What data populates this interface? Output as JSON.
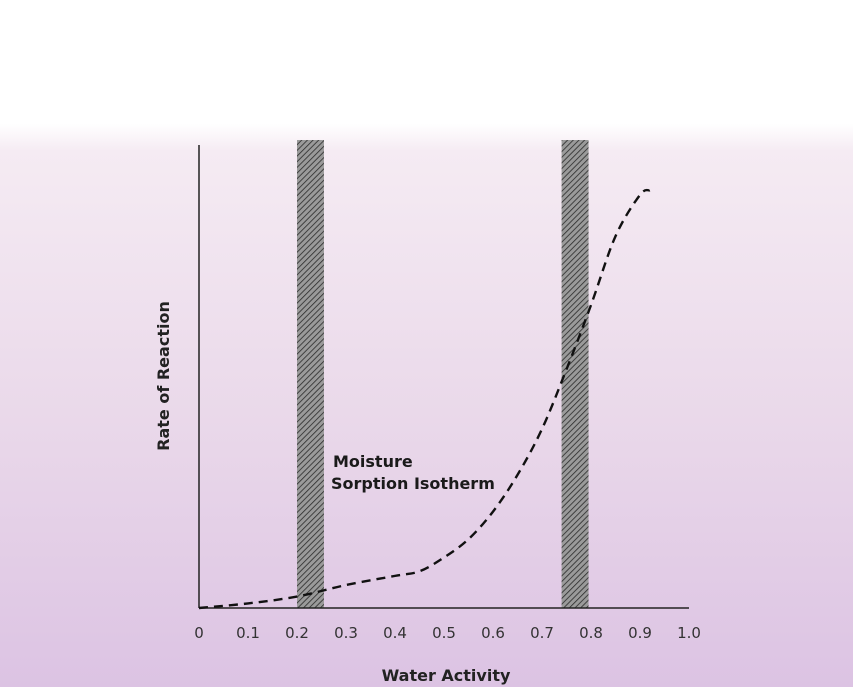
{
  "chart_data": {
    "type": "line",
    "xlabel": "Water Activity",
    "ylabel": "Rate of Reaction",
    "xlim": [
      0,
      1.0
    ],
    "x_ticks": [
      "0",
      "0.1",
      "0.2",
      "0.3",
      "0.4",
      "0.5",
      "0.6",
      "0.7",
      "0.8",
      "0.9",
      "1.0"
    ],
    "y_ticks_shown": false,
    "grid": false,
    "series": [
      {
        "style": "dashed",
        "x": [
          0,
          0.1,
          0.2,
          0.3,
          0.4,
          0.45,
          0.5,
          0.55,
          0.6,
          0.65,
          0.7,
          0.75,
          0.8,
          0.85,
          0.9,
          0.92
        ],
        "y": [
          0.0,
          0.01,
          0.025,
          0.05,
          0.07,
          0.08,
          0.11,
          0.15,
          0.21,
          0.29,
          0.39,
          0.52,
          0.66,
          0.81,
          0.9,
          0.91
        ]
      }
    ],
    "ylim": [
      0,
      1.0
    ],
    "bands": [
      {
        "x_range": [
          0.2,
          0.255
        ],
        "pattern": "hatched"
      },
      {
        "x_range": [
          0.74,
          0.795
        ],
        "pattern": "hatched"
      }
    ],
    "annotations": [
      {
        "lines": [
          "Moisture",
          "Sorption Isotherm"
        ]
      }
    ]
  },
  "colors": {
    "background_top": "#ffffff",
    "background_mid": "#f1e6f0",
    "background_bottom": "#dcc2e2",
    "band_fill": "#8a8a8a",
    "curve": "#111111",
    "axis": "#222222"
  }
}
